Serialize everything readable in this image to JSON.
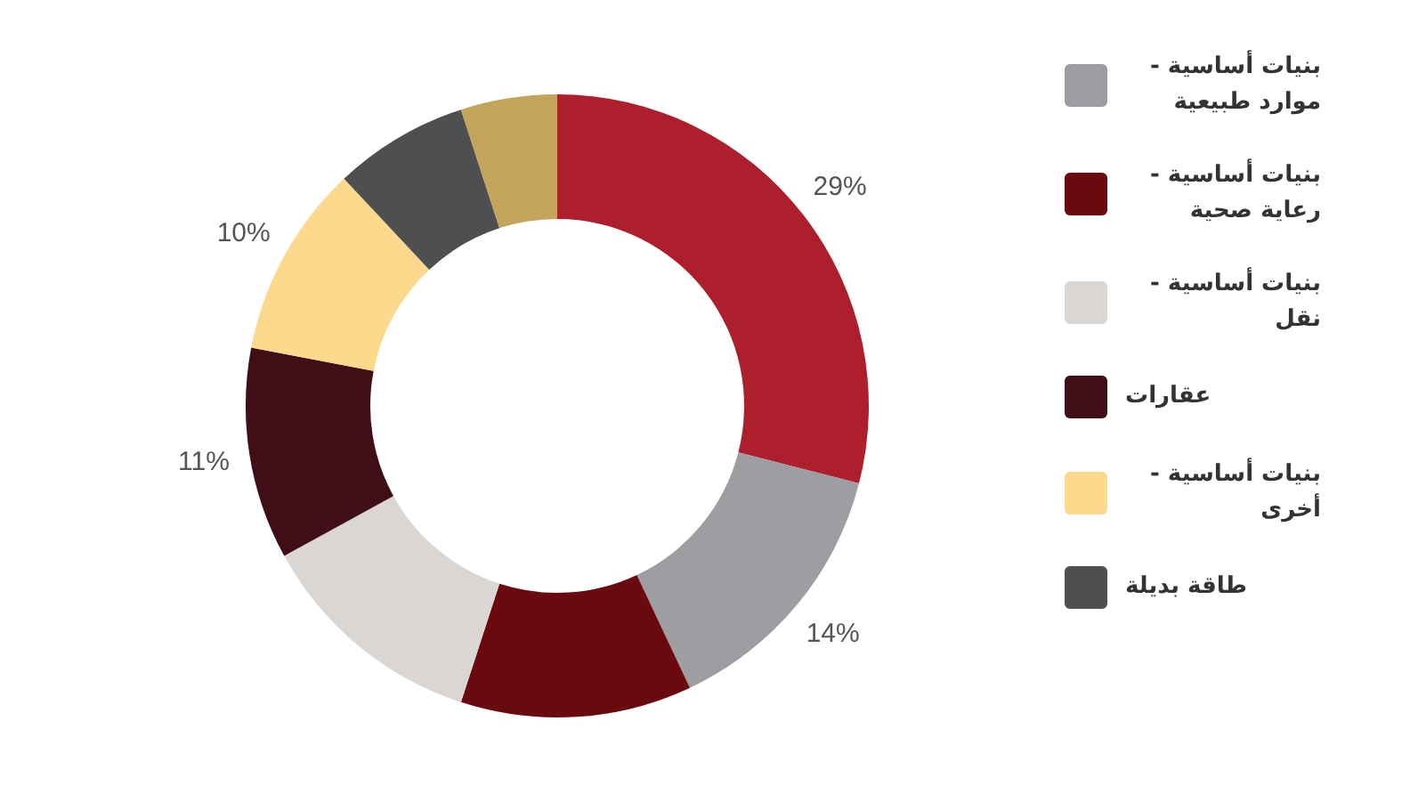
{
  "chart_data": {
    "type": "donut",
    "categories": [
      null,
      "بنيات أساسية - موارد طبيعية",
      "بنيات أساسية - رعاية صحية",
      "بنيات أساسية - نقل",
      "عقارات",
      "بنيات أساسية - أخرى",
      "طاقة بديلة",
      null
    ],
    "values": [
      29,
      14,
      12,
      12,
      11,
      10,
      7,
      5
    ],
    "colors": [
      "#ae1f2e",
      "#9d9ea1",
      "#6b0a0e",
      "#d9d6d4",
      "#400e17",
      "#fdd98d",
      "#4e4f51",
      "#c4a45a"
    ],
    "value_labels": [
      "29%",
      "14%",
      null,
      null,
      "11%",
      "10%",
      null,
      null
    ],
    "legend": "right"
  }
}
